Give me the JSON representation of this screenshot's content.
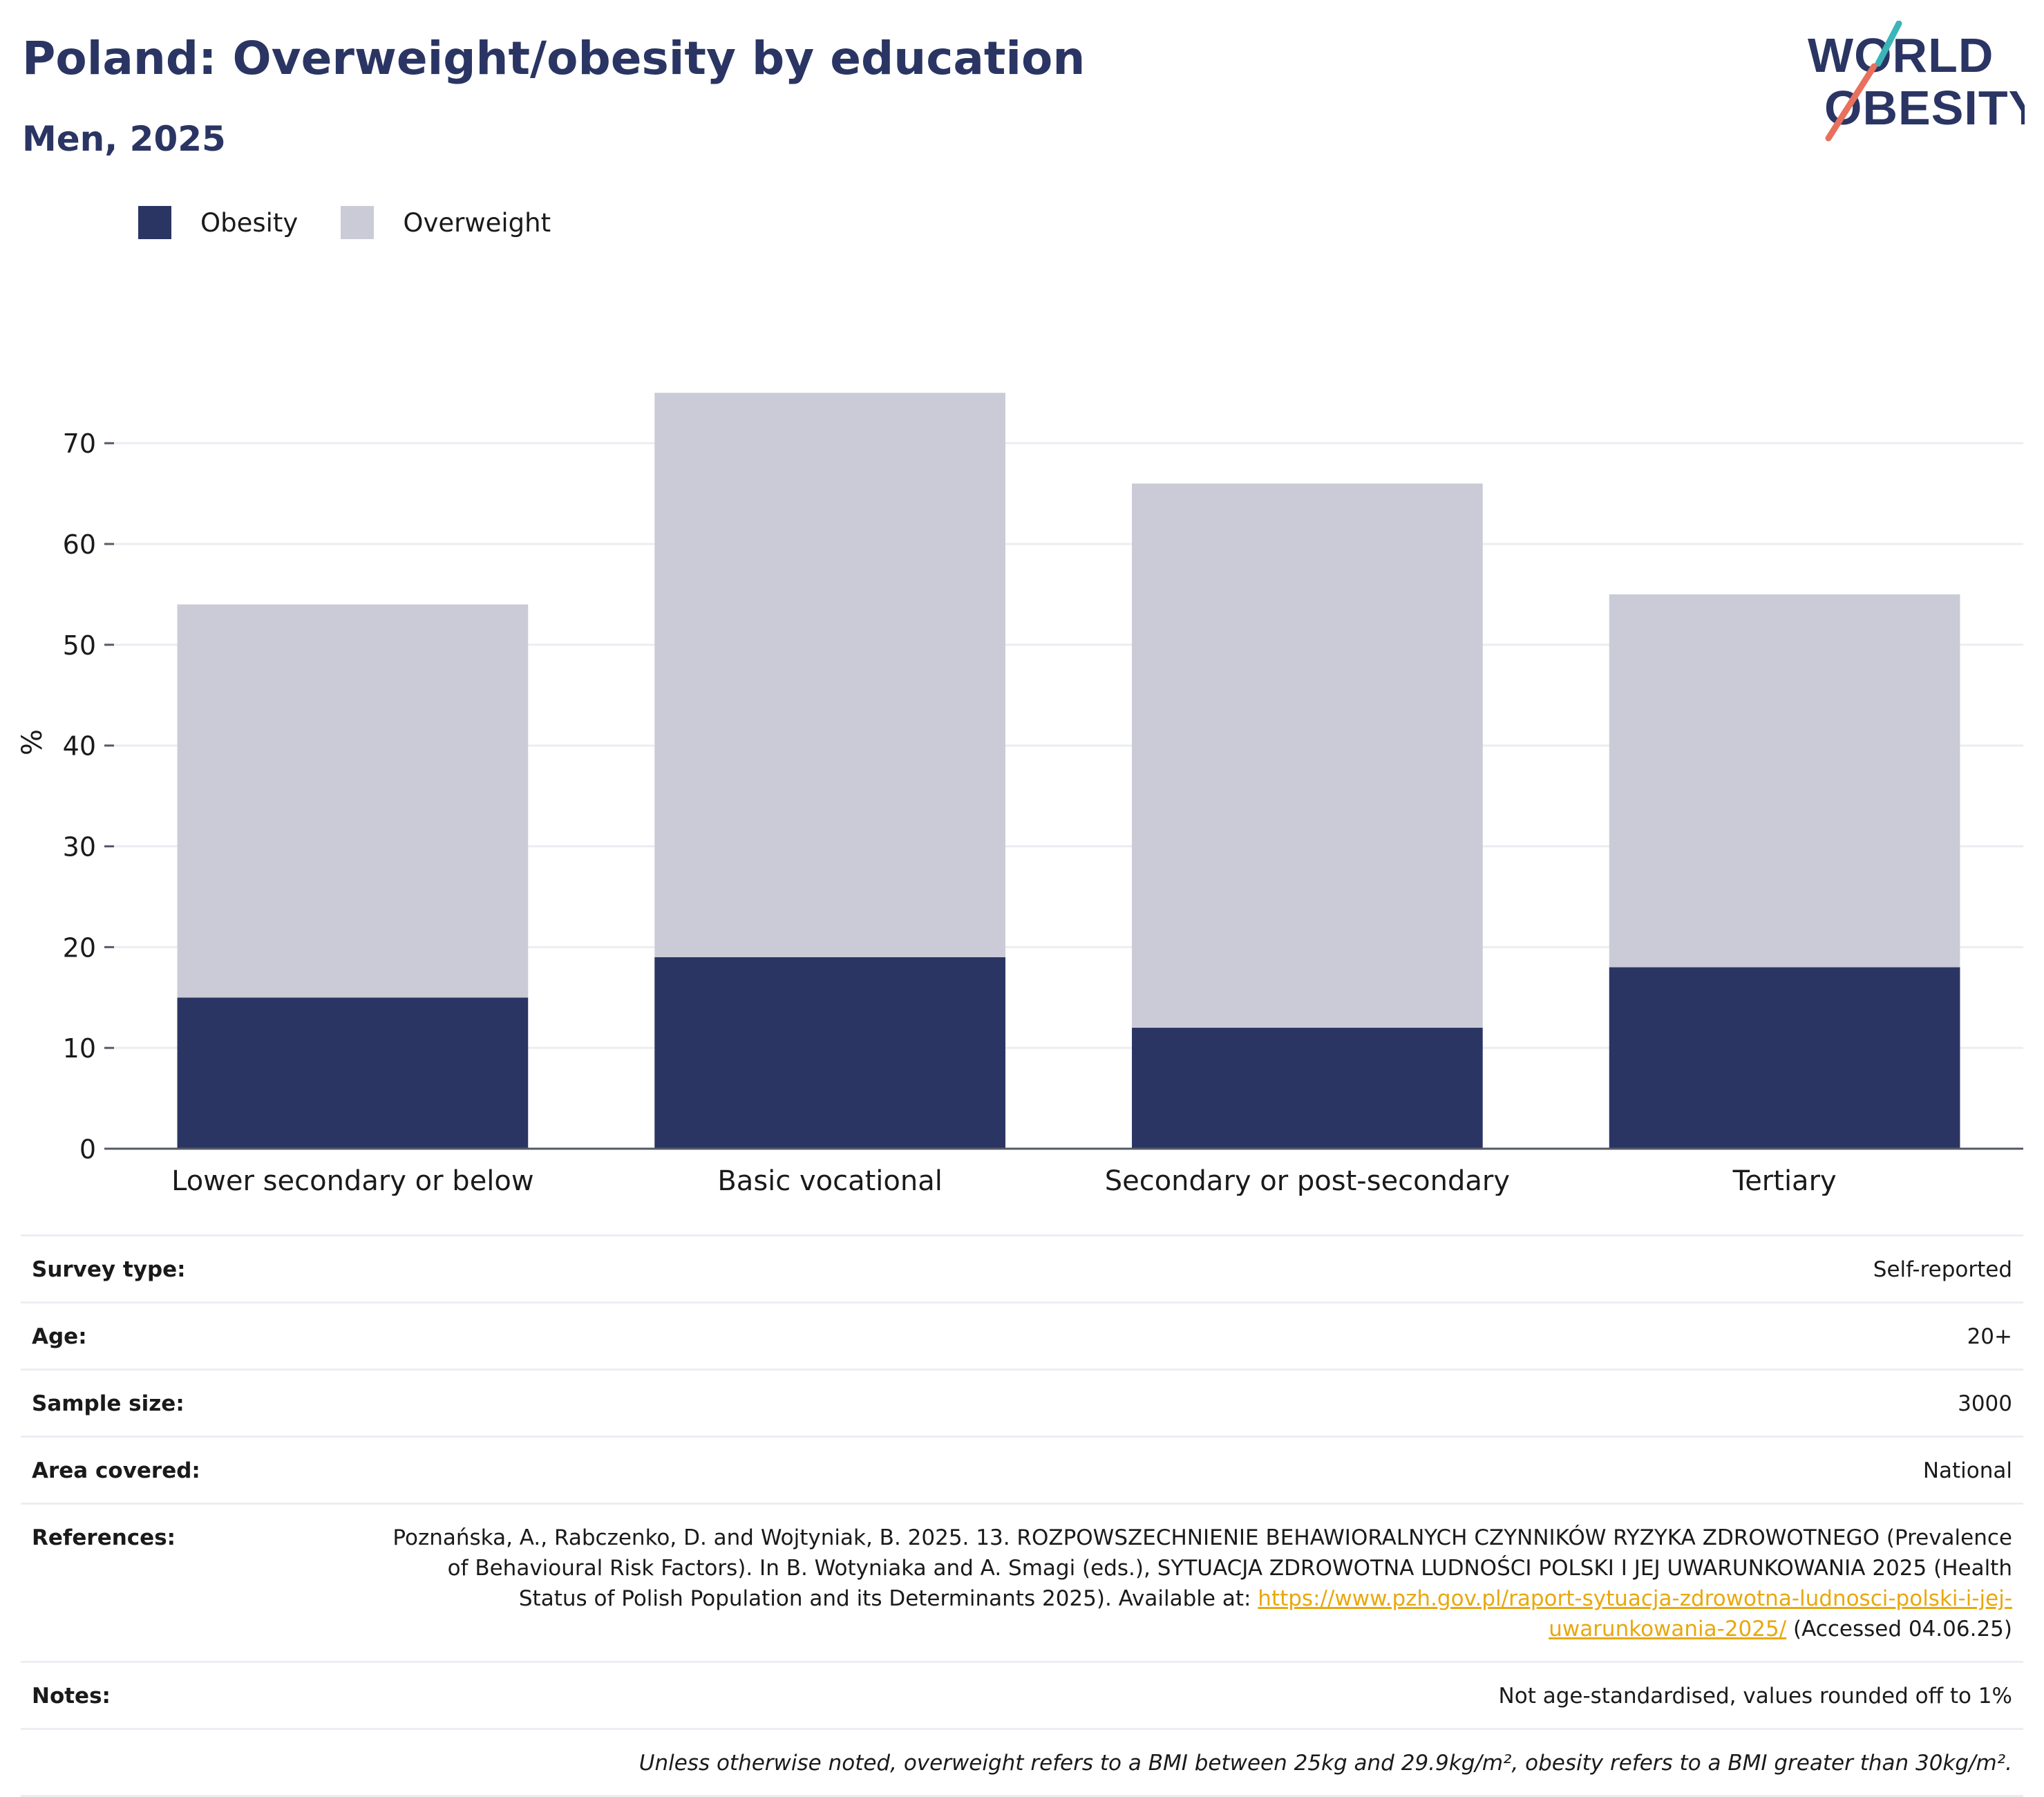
{
  "title": "Poland: Overweight/obesity by education",
  "subtitle": "Men, 2025",
  "logo": {
    "line1": "WORLD",
    "line2": "OBESITY"
  },
  "colors": {
    "obesity": "#2a3563",
    "overweight": "#cacbd7",
    "title": "#2a3563",
    "link": "#e8a80c",
    "logo_teal": "#3bb5b8",
    "logo_red": "#e8705d"
  },
  "legend": {
    "obesity": "Obesity",
    "overweight": "Overweight"
  },
  "chart_data": {
    "type": "bar",
    "stacked": true,
    "categories": [
      "Lower secondary or below",
      "Basic vocational",
      "Secondary or post-secondary",
      "Tertiary"
    ],
    "series": [
      {
        "name": "Obesity",
        "values": [
          15,
          19,
          12,
          18
        ]
      },
      {
        "name": "Overweight",
        "values": [
          39,
          56,
          54,
          37
        ]
      }
    ],
    "ylabel": "%",
    "ylim": [
      0,
      79
    ],
    "yticks": [
      0,
      10,
      20,
      30,
      40,
      50,
      60,
      70
    ],
    "grid": true,
    "legend_position": "top-left"
  },
  "info": {
    "survey_type": {
      "label": "Survey type:",
      "value": "Self-reported"
    },
    "age": {
      "label": "Age:",
      "value": "20+"
    },
    "sample_size": {
      "label": "Sample size:",
      "value": "3000"
    },
    "area_covered": {
      "label": "Area covered:",
      "value": "National"
    },
    "references": {
      "label": "References:",
      "text": "Poznańska, A., Rabczenko, D. and Wojtyniak, B. 2025. 13. ROZPOWSZECHNIENIE BEHAWIORALNYCH CZYNNIKÓW RYZYKA ZDROWOTNEGO (Prevalence of Behavioural Risk Factors). In B. Wotyniaka and A. Smagi (eds.), SYTUACJA ZDROWOTNA LUDNOŚCI POLSKI I JEJ UWARUNKOWANIA 2025 (Health Status of Polish Population and its Determinants 2025). Available at:",
      "link": "https://www.pzh.gov.pl/raport-sytuacja-zdrowotna-ludnosci-polski-i-jej-uwarunkowania-2025/",
      "accessed": "(Accessed 04.06.25)"
    },
    "notes": {
      "label": "Notes:",
      "value": "Not age-standardised, values rounded off to 1%"
    },
    "footer": "Unless otherwise noted, overweight refers to a BMI between 25kg and 29.9kg/m², obesity refers to a BMI greater than 30kg/m²."
  }
}
